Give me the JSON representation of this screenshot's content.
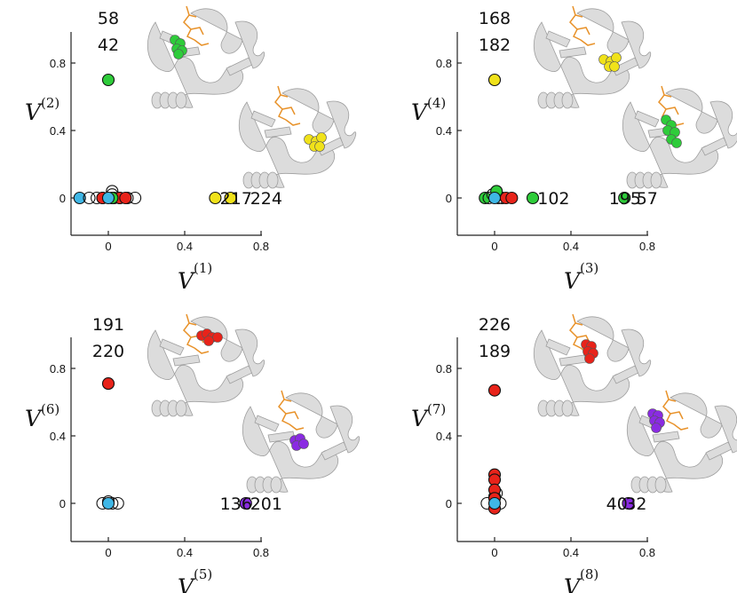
{
  "chart_data": [
    {
      "type": "scatter",
      "xlabel": "V",
      "xlabel_index": "(1)",
      "ylabel": "V",
      "ylabel_index": "(2)",
      "xlim": [
        -0.2,
        0.8
      ],
      "ylim": [
        -0.2,
        0.85
      ],
      "xticks": [
        "0",
        "0.4",
        "0.8"
      ],
      "yticks": [
        "0",
        "0.4",
        "0.8"
      ],
      "annotations": [
        {
          "text": "58",
          "x": 0.0,
          "y": 0.9
        },
        {
          "text": "42",
          "x": 0.0,
          "y": 0.8
        },
        {
          "text": "217",
          "x": 0.76,
          "y": 0.0
        },
        {
          "text": "224",
          "x": 0.98,
          "y": 0.0
        }
      ],
      "points": [
        {
          "x": -0.15,
          "y": 0.0,
          "color": "#3fb7e6"
        },
        {
          "x": -0.1,
          "y": 0.0,
          "color": "#ffffff"
        },
        {
          "x": -0.06,
          "y": 0.0,
          "color": "#ffffff"
        },
        {
          "x": -0.03,
          "y": 0.0,
          "color": "#ffffff"
        },
        {
          "x": 0.02,
          "y": 0.0,
          "color": "#ffffff"
        },
        {
          "x": 0.02,
          "y": 0.02,
          "color": "#ffffff"
        },
        {
          "x": 0.06,
          "y": 0.0,
          "color": "#ffffff"
        },
        {
          "x": 0.1,
          "y": 0.0,
          "color": "#ffffff"
        },
        {
          "x": 0.14,
          "y": 0.0,
          "color": "#ffffff"
        },
        {
          "x": 0.02,
          "y": 0.04,
          "color": "#ffffff"
        },
        {
          "x": -0.03,
          "y": 0.0,
          "color": "#e8231a"
        },
        {
          "x": 0.03,
          "y": 0.0,
          "color": "#e8231a"
        },
        {
          "x": 0.06,
          "y": 0.0,
          "color": "#e8231a"
        },
        {
          "x": 0.09,
          "y": 0.0,
          "color": "#e8231a"
        },
        {
          "x": 0.02,
          "y": 0.0,
          "color": "#2ecc3a"
        },
        {
          "x": 0.0,
          "y": 0.0,
          "color": "#3fb7e6"
        },
        {
          "x": 0.0,
          "y": 0.7,
          "color": "#2ecc3a"
        },
        {
          "x": 0.56,
          "y": 0.0,
          "color": "#f0e21a"
        },
        {
          "x": 0.64,
          "y": 0.0,
          "color": "#f0e21a"
        }
      ]
    },
    {
      "type": "scatter",
      "xlabel": "V",
      "xlabel_index": "(3)",
      "ylabel": "V",
      "ylabel_index": "(4)",
      "xlim": [
        -0.2,
        0.8
      ],
      "ylim": [
        -0.2,
        0.85
      ],
      "xticks": [
        "0",
        "0.4",
        "0.8"
      ],
      "yticks": [
        "0",
        "0.4",
        "0.8"
      ],
      "annotations": [
        {
          "text": "168",
          "x": 0.0,
          "y": 0.9
        },
        {
          "text": "182",
          "x": 0.0,
          "y": 0.8
        },
        {
          "text": "102",
          "x": 0.26,
          "y": 0.0
        },
        {
          "text": "195",
          "x": 0.78,
          "y": 0.0
        },
        {
          "text": "57",
          "x": 0.98,
          "y": 0.0
        }
      ],
      "points": [
        {
          "x": -0.05,
          "y": 0.0,
          "color": "#2ecc3a"
        },
        {
          "x": -0.03,
          "y": 0.0,
          "color": "#ffffff"
        },
        {
          "x": -0.01,
          "y": 0.02,
          "color": "#ffffff"
        },
        {
          "x": 0.02,
          "y": 0.0,
          "color": "#ffffff"
        },
        {
          "x": 0.04,
          "y": 0.0,
          "color": "#ffffff"
        },
        {
          "x": 0.01,
          "y": 0.04,
          "color": "#2ecc3a"
        },
        {
          "x": 0.06,
          "y": 0.0,
          "color": "#e8231a"
        },
        {
          "x": 0.09,
          "y": 0.0,
          "color": "#e8231a"
        },
        {
          "x": 0.0,
          "y": 0.0,
          "color": "#3fb7e6"
        },
        {
          "x": 0.2,
          "y": 0.0,
          "color": "#2ecc3a"
        },
        {
          "x": 0.68,
          "y": 0.0,
          "color": "#2ecc3a"
        },
        {
          "x": 0.0,
          "y": 0.7,
          "color": "#f0e21a"
        }
      ]
    },
    {
      "type": "scatter",
      "xlabel": "V",
      "xlabel_index": "(5)",
      "ylabel": "V",
      "ylabel_index": "(6)",
      "xlim": [
        -0.2,
        0.8
      ],
      "ylim": [
        -0.2,
        0.85
      ],
      "xticks": [
        "0",
        "0.4",
        "0.8"
      ],
      "yticks": [
        "0",
        "0.4",
        "0.8"
      ],
      "annotations": [
        {
          "text": "191",
          "x": 0.0,
          "y": 0.9
        },
        {
          "text": "220",
          "x": 0.0,
          "y": 0.8
        },
        {
          "text": "136",
          "x": 0.76,
          "y": 0.0
        },
        {
          "text": "201",
          "x": 0.98,
          "y": 0.0
        }
      ],
      "points": [
        {
          "x": -0.03,
          "y": 0.0,
          "color": "#ffffff"
        },
        {
          "x": 0.02,
          "y": 0.0,
          "color": "#ffffff"
        },
        {
          "x": 0.05,
          "y": 0.0,
          "color": "#ffffff"
        },
        {
          "x": 0.0,
          "y": 0.01,
          "color": "#ffffff"
        },
        {
          "x": 0.0,
          "y": 0.0,
          "color": "#3fb7e6"
        },
        {
          "x": 0.0,
          "y": 0.71,
          "color": "#e8231a"
        },
        {
          "x": 0.72,
          "y": 0.0,
          "color": "#8a2be2"
        }
      ]
    },
    {
      "type": "scatter",
      "xlabel": "V",
      "xlabel_index": "(8)",
      "ylabel": "V",
      "ylabel_index": "(7)",
      "xlim": [
        -0.2,
        0.8
      ],
      "ylim": [
        -0.2,
        0.85
      ],
      "xticks": [
        "0",
        "0.4",
        "0.8"
      ],
      "yticks": [
        "0",
        "0.4",
        "0.8"
      ],
      "annotations": [
        {
          "text": "226",
          "x": 0.0,
          "y": 0.9
        },
        {
          "text": "189",
          "x": 0.0,
          "y": 0.8
        },
        {
          "text": "40",
          "x": 0.76,
          "y": 0.0
        },
        {
          "text": "32",
          "x": 0.9,
          "y": 0.0
        }
      ],
      "points": [
        {
          "x": -0.04,
          "y": 0.0,
          "color": "#ffffff"
        },
        {
          "x": 0.01,
          "y": 0.06,
          "color": "#ffffff"
        },
        {
          "x": 0.0,
          "y": 0.04,
          "color": "#ffffff"
        },
        {
          "x": 0.03,
          "y": 0.0,
          "color": "#ffffff"
        },
        {
          "x": 0.0,
          "y": 0.17,
          "color": "#e8231a"
        },
        {
          "x": 0.0,
          "y": 0.14,
          "color": "#e8231a"
        },
        {
          "x": 0.0,
          "y": 0.08,
          "color": "#e8231a"
        },
        {
          "x": 0.0,
          "y": 0.03,
          "color": "#e8231a"
        },
        {
          "x": 0.0,
          "y": -0.03,
          "color": "#e8231a"
        },
        {
          "x": 0.0,
          "y": 0.0,
          "color": "#3fb7e6"
        },
        {
          "x": 0.0,
          "y": 0.67,
          "color": "#e8231a"
        },
        {
          "x": 0.7,
          "y": 0.0,
          "color": "#8a2be2"
        }
      ]
    }
  ]
}
